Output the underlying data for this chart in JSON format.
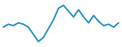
{
  "values": [
    0.3,
    0.5,
    0.4,
    0.6,
    0.5,
    0.3,
    -0.2,
    -0.7,
    -0.4,
    0.2,
    0.8,
    1.6,
    1.8,
    1.4,
    1.0,
    1.5,
    1.0,
    0.6,
    1.1,
    0.7,
    0.4,
    0.5,
    0.3,
    0.6
  ],
  "line_color": "#1a8ec5",
  "linewidth": 1.1,
  "background_color": "#ffffff"
}
